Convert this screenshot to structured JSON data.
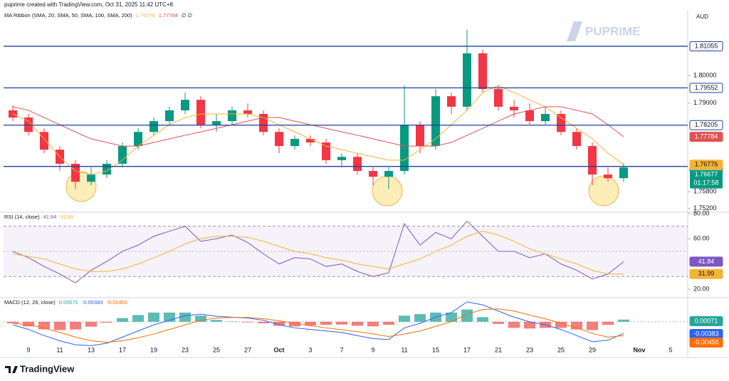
{
  "credit": "puprime created with TradingView.com, Oct 31, 2025 11:42 UTC+8",
  "currency": "AUD",
  "watermark": "PUPRIME",
  "brand": "TradingView",
  "chart_data": [
    {
      "type": "candlestick",
      "title": "MA Ribbon (SMA, 20, SMA, 50, SMA, 100, SMA, 200)",
      "na_values": "∅ ∅",
      "categories": [
        null,
        "9",
        null,
        "11",
        null,
        "13",
        null,
        "17",
        null,
        "19",
        null,
        "23",
        null,
        "25",
        null,
        "27",
        null,
        "Oct",
        null,
        "3",
        null,
        "7",
        null,
        "9",
        null,
        "11",
        null,
        "15",
        null,
        "17",
        null,
        "21",
        null,
        "23",
        null,
        "25",
        null,
        "29",
        null,
        null,
        "Nov",
        null,
        "5",
        null
      ],
      "open": [
        1.7874,
        1.7848,
        1.7796,
        1.7732,
        1.7681,
        1.7616,
        1.7642,
        1.7681,
        1.7745,
        1.7796,
        1.7835,
        1.7874,
        1.7912,
        1.7822,
        1.7835,
        1.7874,
        1.7861,
        1.7796,
        1.7745,
        1.7771,
        1.7758,
        1.7694,
        1.7706,
        1.7655,
        1.7634,
        1.7655,
        1.7822,
        1.7745,
        1.7925,
        1.7887,
        1.808,
        1.7951,
        1.7887,
        1.7874,
        1.7835,
        1.7861,
        1.7796,
        1.7745,
        1.7642,
        1.7629,
        null,
        null,
        null,
        null
      ],
      "high": [
        1.7892,
        1.7861,
        1.7809,
        1.7745,
        1.7694,
        1.7668,
        1.7694,
        1.7758,
        1.7809,
        1.7848,
        1.7887,
        1.7938,
        1.7925,
        1.7861,
        1.7887,
        1.7899,
        1.7874,
        1.7809,
        1.7784,
        1.7784,
        1.7771,
        1.7719,
        1.7719,
        1.7668,
        1.7668,
        1.7964,
        1.7835,
        1.7951,
        1.7938,
        1.8165,
        1.8093,
        1.7964,
        1.7912,
        1.7899,
        1.7887,
        1.7874,
        1.7809,
        1.7758,
        1.7668,
        1.7683,
        null,
        null,
        null,
        null
      ],
      "low": [
        1.7835,
        1.7784,
        1.7719,
        1.7655,
        1.759,
        1.7603,
        1.7629,
        1.7668,
        1.7732,
        1.7784,
        1.7822,
        1.7861,
        1.7809,
        1.7796,
        1.7822,
        1.7848,
        1.7784,
        1.7719,
        1.7732,
        1.7745,
        1.7681,
        1.7668,
        1.7642,
        1.7603,
        1.759,
        1.7642,
        1.7719,
        1.7732,
        1.7861,
        1.7874,
        1.7938,
        1.7874,
        1.7848,
        1.7822,
        1.7822,
        1.7784,
        1.7732,
        1.7603,
        1.7616,
        1.7616,
        null,
        null,
        null,
        null
      ],
      "close": [
        1.7848,
        1.7796,
        1.7732,
        1.7681,
        1.7616,
        1.7642,
        1.7681,
        1.7745,
        1.7796,
        1.7835,
        1.7874,
        1.7912,
        1.7822,
        1.7835,
        1.7874,
        1.7861,
        1.7796,
        1.7745,
        1.7771,
        1.7758,
        1.7694,
        1.7706,
        1.7655,
        1.7634,
        1.7655,
        1.7822,
        1.7745,
        1.7925,
        1.7887,
        1.808,
        1.7951,
        1.7887,
        1.7874,
        1.7835,
        1.7861,
        1.7796,
        1.7745,
        1.7642,
        1.7629,
        1.76677,
        null,
        null,
        null,
        null
      ],
      "color_up": "#089981",
      "color_down": "#f23645",
      "series": [
        {
          "color": "#f5b335",
          "values": [
            1.7861,
            1.7835,
            1.7771,
            1.7706,
            1.7655,
            1.7642,
            1.7655,
            1.7694,
            1.7745,
            1.7784,
            1.7822,
            1.7848,
            1.7861,
            1.7861,
            1.7861,
            1.7861,
            1.7848,
            1.7822,
            1.7796,
            1.7771,
            1.7745,
            1.7732,
            1.7719,
            1.7706,
            1.7694,
            1.7694,
            1.7732,
            1.7771,
            1.7822,
            1.7874,
            1.7938,
            1.7964,
            1.7938,
            1.7912,
            1.7887,
            1.7848,
            1.7809,
            1.7771,
            1.7719,
            1.76776,
            null,
            null,
            null,
            null
          ]
        },
        {
          "color": "#e05252",
          "values": [
            1.7887,
            1.7874,
            1.7848,
            1.7822,
            1.7796,
            1.7771,
            1.7758,
            1.7745,
            1.7745,
            1.7758,
            1.7771,
            1.7784,
            1.7796,
            1.7809,
            1.7822,
            1.7835,
            1.7848,
            1.7848,
            1.7835,
            1.7822,
            1.7809,
            1.7796,
            1.7784,
            1.7771,
            1.7758,
            1.7745,
            1.7745,
            1.7745,
            1.7758,
            1.7784,
            1.7809,
            1.7835,
            1.7861,
            1.7874,
            1.7887,
            1.7887,
            1.7874,
            1.7861,
            1.7822,
            1.77784,
            null,
            null,
            null,
            null
          ]
        }
      ],
      "levels": [
        1.81055,
        1.79552,
        1.78205,
        1.76715
      ],
      "level_color": "#1f3f9e",
      "countdown": "01:17:58",
      "ylim": [
        1.7506,
        1.8234
      ],
      "yticks": [
        {
          "value": 1.8,
          "label": "1.80000"
        },
        {
          "value": 1.79,
          "label": "1.79000"
        },
        {
          "value": 1.758,
          "label": "1.75800"
        },
        {
          "value": 1.752,
          "label": "1.75200"
        }
      ]
    },
    {
      "type": "line",
      "title": "RSI (14, close)",
      "series": [
        {
          "color": "#7e57c2",
          "values": [
            50,
            45,
            38,
            32,
            25,
            35,
            42,
            50,
            55,
            62,
            66,
            70,
            58,
            60,
            63,
            57,
            48,
            40,
            45,
            44,
            38,
            40,
            34,
            30,
            33,
            72,
            55,
            65,
            60,
            74,
            62,
            50,
            50,
            45,
            48,
            40,
            35,
            28,
            32,
            41.84,
            null,
            null,
            null,
            null
          ]
        },
        {
          "color": "#f5b335",
          "values": [
            48,
            46,
            44,
            40,
            36,
            34,
            34,
            36,
            40,
            45,
            50,
            56,
            60,
            62,
            62,
            61,
            58,
            54,
            50,
            48,
            45,
            43,
            40,
            38,
            36,
            40,
            44,
            50,
            55,
            62,
            66,
            63,
            58,
            52,
            48,
            44,
            40,
            35,
            32,
            31.99,
            null,
            null,
            null,
            null
          ]
        }
      ],
      "band": [
        30,
        70
      ],
      "midline": 50,
      "ylim": [
        13.2,
        81.1
      ],
      "yticks": [
        {
          "value": 80,
          "label": "80.00"
        },
        {
          "value": 60,
          "label": "60.00"
        },
        {
          "value": 20,
          "label": "20.00"
        }
      ]
    },
    {
      "type": "macd",
      "title": "MACD (12, 26, close)",
      "histogram": {
        "color_up": "#26a69a",
        "color_down": "#ef5350",
        "values": [
          -0.0005,
          -0.0015,
          -0.0025,
          -0.0027,
          -0.0025,
          -0.0016,
          -0.0003,
          0.0012,
          0.0022,
          0.003,
          0.003,
          0.003,
          0.002,
          0.0006,
          0.0001,
          -0.0002,
          -0.0005,
          -0.0013,
          -0.0015,
          -0.0012,
          -0.001,
          -0.0009,
          -0.0013,
          -0.0015,
          -0.001,
          0.002,
          0.0025,
          0.003,
          0.003,
          0.004,
          0.0015,
          -0.0007,
          -0.002,
          -0.0022,
          -0.002,
          -0.002,
          -0.0025,
          -0.0027,
          -0.001,
          0.00071,
          null,
          null,
          null,
          null
        ]
      },
      "series": [
        {
          "color": "#2962ff",
          "values": [
            -0.001,
            -0.0025,
            -0.0045,
            -0.0062,
            -0.0075,
            -0.0078,
            -0.007,
            -0.005,
            -0.003,
            -0.001,
            0.0005,
            0.002,
            0.0025,
            0.0018,
            0.0015,
            0.0012,
            0.0005,
            -0.001,
            -0.002,
            -0.0025,
            -0.003,
            -0.0035,
            -0.0045,
            -0.0055,
            -0.0058,
            -0.002,
            -0.0005,
            0.0015,
            0.003,
            0.0065,
            0.0055,
            0.0035,
            0.0015,
            0,
            -0.001,
            -0.0025,
            -0.0045,
            -0.0065,
            -0.006,
            -0.00383,
            null,
            null,
            null,
            null
          ]
        },
        {
          "color": "#ff6d00",
          "values": [
            -0.0005,
            -0.001,
            -0.002,
            -0.0035,
            -0.005,
            -0.0062,
            -0.0067,
            -0.0062,
            -0.0052,
            -0.004,
            -0.0025,
            -0.001,
            0.0005,
            0.0012,
            0.0014,
            0.0014,
            0.001,
            0.0003,
            -0.0005,
            -0.0013,
            -0.002,
            -0.0026,
            -0.0032,
            -0.004,
            -0.0048,
            -0.004,
            -0.003,
            -0.0015,
            0,
            0.0025,
            0.004,
            0.0042,
            0.0035,
            0.0022,
            0.001,
            -0.0005,
            -0.002,
            -0.0038,
            -0.005,
            -0.00455,
            null,
            null,
            null,
            null
          ]
        }
      ],
      "ylim": [
        -0.01119,
        0.00786
      ]
    }
  ]
}
